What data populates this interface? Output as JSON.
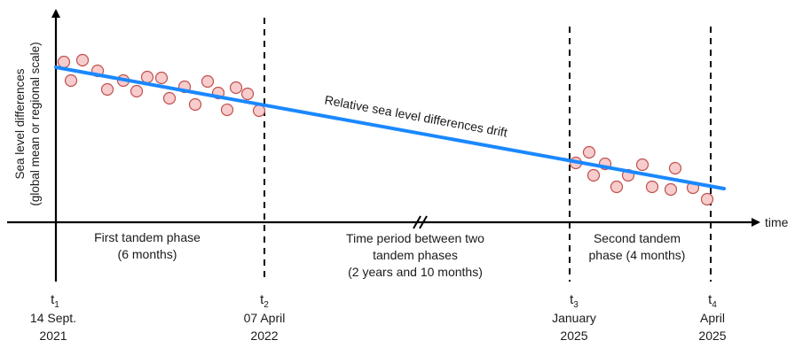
{
  "axes": {
    "y_label_line1": "Sea level differences",
    "y_label_line2": "(global mean or regional scale)",
    "x_label": "time"
  },
  "trend_label": "Relative sea level differences drift",
  "phases": [
    {
      "lines": [
        "First tandem phase",
        "(6 months)"
      ]
    },
    {
      "lines": [
        "Time period between two",
        "tandem phases",
        "(2 years and 10 months)"
      ]
    },
    {
      "lines": [
        "Second tandem",
        "phase (4 months)"
      ]
    }
  ],
  "markers": [
    {
      "t": "t",
      "sub": "1",
      "date_lines": [
        "14 Sept.",
        "2021"
      ]
    },
    {
      "t": "t",
      "sub": "2",
      "date_lines": [
        "07 April",
        "2022"
      ]
    },
    {
      "t": "t",
      "sub": "3",
      "date_lines": [
        "January",
        "2025"
      ]
    },
    {
      "t": "t",
      "sub": "4",
      "date_lines": [
        "April",
        "2025"
      ]
    }
  ],
  "colors": {
    "trend_line": "#1a88ff",
    "point_fill": "#f7cccc",
    "point_stroke": "#c0504d",
    "axis": "#000000"
  }
}
